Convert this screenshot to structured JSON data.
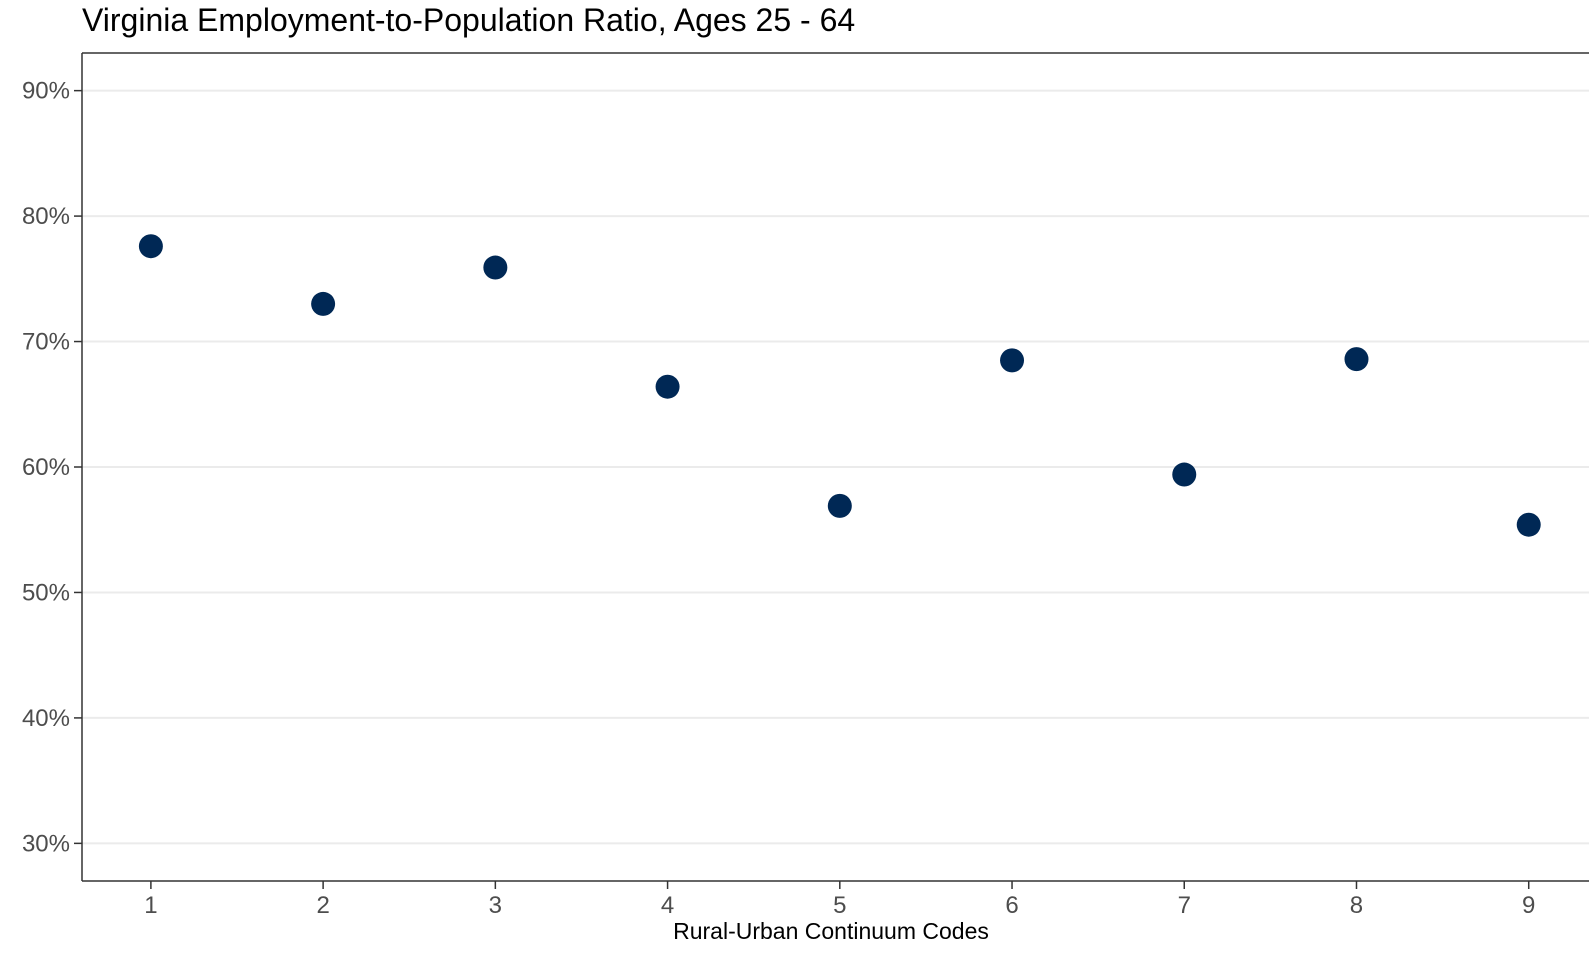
{
  "chart_data": {
    "type": "scatter",
    "title": "Virginia Employment-to-Population Ratio, Ages 25 - 64",
    "xlabel": "Rural-Urban Continuum Codes",
    "ylabel": "",
    "x": [
      1,
      2,
      3,
      4,
      5,
      6,
      7,
      8,
      9
    ],
    "y": [
      77.6,
      73.0,
      75.9,
      66.4,
      56.9,
      68.5,
      59.4,
      68.6,
      55.4
    ],
    "x_ticks": [
      "1",
      "2",
      "3",
      "4",
      "5",
      "6",
      "7",
      "8",
      "9"
    ],
    "y_ticks": [
      "30%",
      "40%",
      "50%",
      "60%",
      "70%",
      "80%",
      "90%"
    ],
    "y_tick_values": [
      30,
      40,
      50,
      60,
      70,
      80,
      90
    ],
    "xlim": [
      0.6,
      9.35
    ],
    "ylim": [
      27,
      93
    ],
    "grid": "horizontal major gridlines",
    "legend": "none",
    "point_color": "#002855",
    "grid_color": "#ebebeb",
    "axis_color": "#333333"
  }
}
